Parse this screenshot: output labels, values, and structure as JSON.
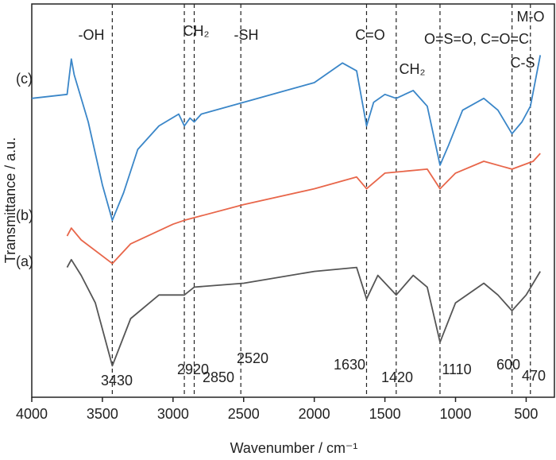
{
  "chart_data": {
    "type": "line",
    "xlabel": "Wavenumber / cm⁻¹",
    "ylabel": "Transmittance / a.u.",
    "xlim": [
      4000,
      300
    ],
    "ylim": [
      0,
      100
    ],
    "xticks": [
      4000,
      3500,
      3000,
      2500,
      2000,
      1500,
      1000,
      500
    ],
    "series": [
      {
        "name": "(a)",
        "color": "#555555",
        "x": [
          3750,
          3720,
          3650,
          3550,
          3430,
          3300,
          3100,
          2920,
          2850,
          2500,
          2000,
          1700,
          1630,
          1550,
          1420,
          1300,
          1200,
          1110,
          1000,
          800,
          700,
          600,
          500,
          400
        ],
        "values": [
          33,
          35,
          31,
          24,
          8,
          20,
          26,
          26,
          28,
          29,
          32,
          33,
          25,
          31,
          26,
          31,
          28,
          14,
          24,
          29,
          26,
          22,
          26,
          32
        ]
      },
      {
        "name": "(b)",
        "color": "#e8664a",
        "x": [
          3750,
          3720,
          3650,
          3430,
          3300,
          3000,
          2920,
          2500,
          2000,
          1700,
          1630,
          1500,
          1200,
          1110,
          1000,
          800,
          600,
          450,
          400
        ],
        "values": [
          41,
          43,
          40,
          34,
          39,
          44,
          45,
          49,
          53,
          56,
          53,
          57,
          58,
          53,
          57,
          60,
          58,
          60,
          62
        ]
      },
      {
        "name": "(c)",
        "color": "#3a86c8",
        "x": [
          4000,
          3750,
          3720,
          3700,
          3600,
          3500,
          3430,
          3350,
          3250,
          3100,
          2960,
          2920,
          2880,
          2850,
          2800,
          2500,
          2200,
          2000,
          1800,
          1700,
          1630,
          1580,
          1500,
          1420,
          1300,
          1200,
          1110,
          1050,
          950,
          800,
          700,
          600,
          530,
          470,
          400
        ],
        "values": [
          76,
          77,
          86,
          82,
          70,
          54,
          45,
          52,
          63,
          69,
          72,
          69,
          71,
          70,
          72,
          75,
          78,
          80,
          85,
          83,
          69,
          75,
          77,
          76,
          78,
          74,
          59,
          64,
          73,
          76,
          73,
          67,
          70,
          74,
          87
        ]
      }
    ],
    "peaks": [
      3430,
      2920,
      2850,
      2520,
      1630,
      1420,
      1110,
      600,
      470
    ],
    "annotations": [
      "-OH",
      "CH₂",
      "-SH",
      "C=O",
      "CH₂",
      "O=S=O, C=O=C",
      "C-S",
      "M-O"
    ]
  }
}
